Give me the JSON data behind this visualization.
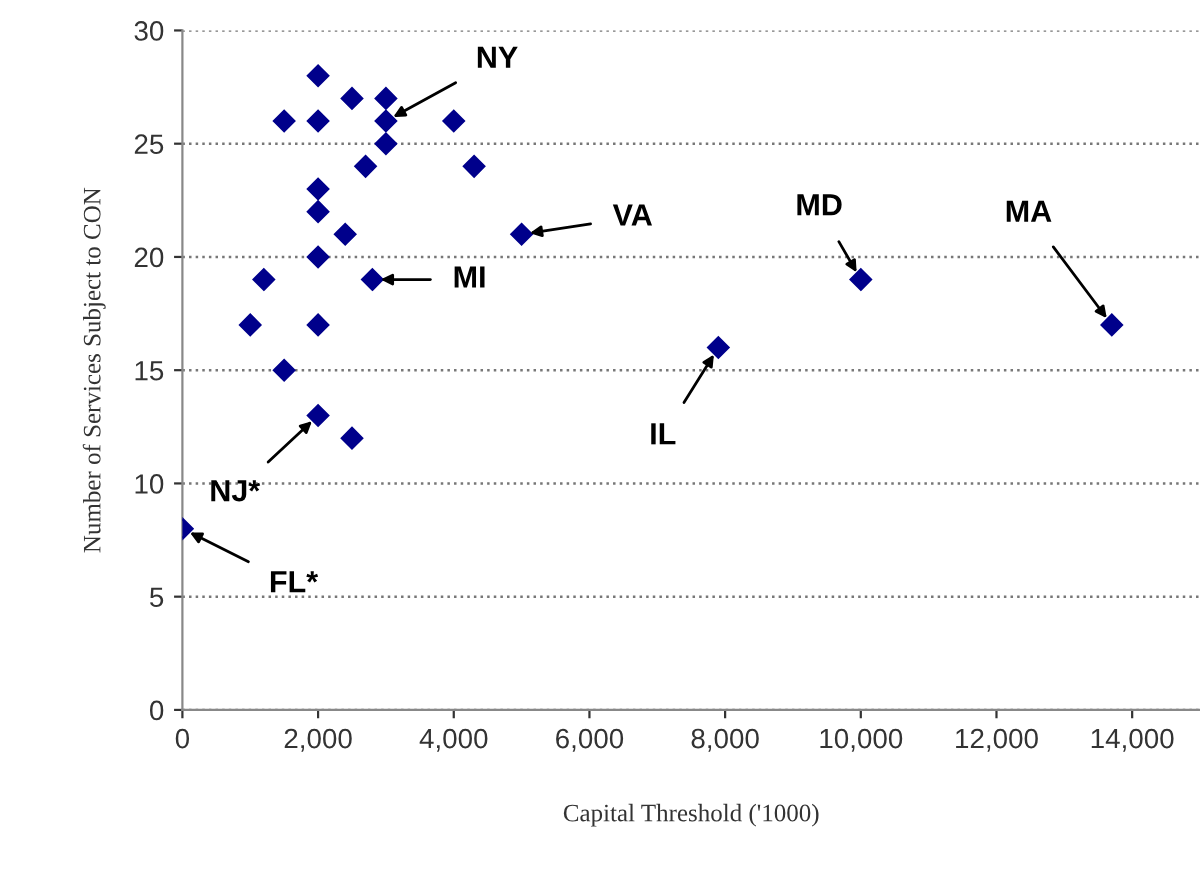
{
  "chart_data": {
    "type": "scatter",
    "xlabel": "Capital Threshold ('1000)",
    "ylabel": "Number of Services Subject to CON",
    "x": [
      0,
      1000,
      1200,
      1500,
      1500,
      2000,
      2000,
      2000,
      2000,
      2000,
      2000,
      2000,
      2400,
      2500,
      2500,
      2700,
      2800,
      3000,
      3000,
      3000,
      4000,
      4300,
      5000,
      7900,
      10000,
      13700
    ],
    "series": [
      {
        "color": "#00008b",
        "values": [
          8,
          17,
          19,
          15,
          26,
          28,
          26,
          23,
          22,
          20,
          17,
          13,
          21,
          27,
          12,
          24,
          19,
          27,
          26,
          25,
          26,
          24,
          21,
          16,
          19,
          17
        ]
      }
    ],
    "xlim": [
      0,
      15000
    ],
    "xticks": [
      {
        "value": 0,
        "label": "0"
      },
      {
        "value": 2000,
        "label": "2,000"
      },
      {
        "value": 4000,
        "label": "4,000"
      },
      {
        "value": 6000,
        "label": "6,000"
      },
      {
        "value": 8000,
        "label": "8,000"
      },
      {
        "value": 10000,
        "label": "10,000"
      },
      {
        "value": 12000,
        "label": "12,000"
      },
      {
        "value": 14000,
        "label": "14,000"
      }
    ],
    "ylim": [
      0,
      30
    ],
    "yticks": [
      0,
      5,
      10,
      15,
      20,
      25,
      30
    ],
    "grid": "y",
    "marker": "diamond",
    "legend": false,
    "annotations": [
      {
        "text": "NY",
        "x": 3000,
        "y": 26
      },
      {
        "text": "VA",
        "x": 5000,
        "y": 21
      },
      {
        "text": "MD",
        "x": 10000,
        "y": 19
      },
      {
        "text": "MA",
        "x": 13700,
        "y": 17
      },
      {
        "text": "MI",
        "x": 2800,
        "y": 19
      },
      {
        "text": "IL",
        "x": 7900,
        "y": 16
      },
      {
        "text": "NJ*",
        "x": 2000,
        "y": 13
      },
      {
        "text": "FL*",
        "x": 0,
        "y": 8
      }
    ]
  }
}
